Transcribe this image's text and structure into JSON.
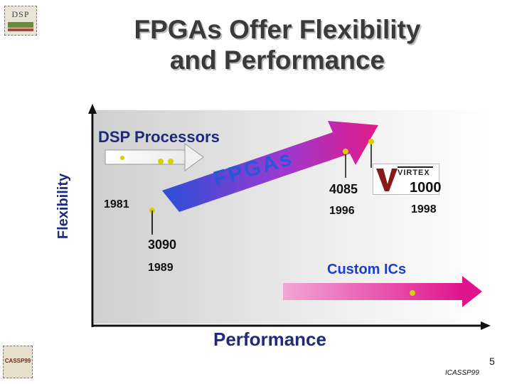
{
  "title_line1": "FPGAs Offer Flexibility",
  "title_line2": "and Performance",
  "y_axis_label": "Flexibility",
  "x_axis_label": "Performance",
  "dsp_processors_label": "DSP Processors",
  "fpgas_label": "FPGAs",
  "custom_ics_label": "Custom ICs",
  "milestones": [
    {
      "device": "",
      "year": "1981"
    },
    {
      "device": "3090",
      "year": "1989"
    },
    {
      "device": "4085",
      "year": "1996"
    },
    {
      "device": "1000",
      "year": "1998"
    }
  ],
  "virtex_logo_text": "VIRTEX",
  "page_number": "5",
  "conference": "ICASSP99",
  "logo_dsp_text": "DSP",
  "logo_icassp_text": "CASSP99",
  "colors": {
    "title": "#3a3a3a",
    "axis_text": "#1f2a7a",
    "fpga_arrow_start": "#2a4fd8",
    "fpga_arrow_end": "#e21a8a",
    "dot": "#d6d000"
  }
}
